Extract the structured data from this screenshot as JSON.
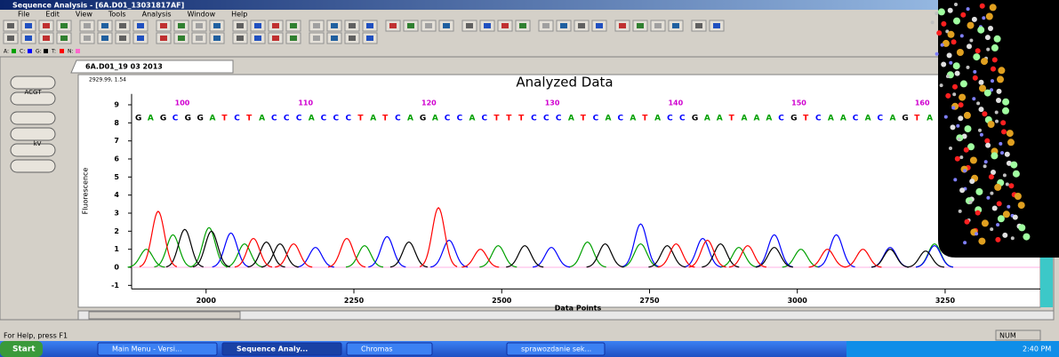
{
  "window": {
    "title": "Sequence Analysis - [6A.D01_13031817AF]",
    "menu": [
      "File",
      "Edit",
      "View",
      "Tools",
      "Analysis",
      "Window",
      "Help"
    ]
  },
  "legend": [
    {
      "label": "A:",
      "color": "#00a000"
    },
    {
      "label": "C:",
      "color": "#0000ff"
    },
    {
      "label": "G:",
      "color": "#000000"
    },
    {
      "label": "T:",
      "color": "#ff0000"
    },
    {
      "label": "N:",
      "color": "#ff66cc"
    }
  ],
  "tab": "6A.D01_19 03 2013",
  "side_buttons": [
    "ACGT",
    "kV"
  ],
  "chart_data": {
    "type": "line",
    "title": "Analyzed Data",
    "cursor": "2929.99, 1.54",
    "xlabel": "Data Points",
    "ylabel": "Fluorescence",
    "xlim": [
      1874,
      3411
    ],
    "ylim": [
      -1.2,
      9.6
    ],
    "xticks": [
      2000,
      2250,
      2500,
      2750,
      3000,
      3250
    ],
    "yticks": [
      -1,
      0,
      1,
      2,
      3,
      4,
      5,
      6,
      7,
      8,
      9
    ],
    "base_numbers": [
      100,
      110,
      120,
      130,
      140,
      150,
      160
    ],
    "sequence": "GAGCGGATCTACCCACCCTATCAGACCACTTTCCCATCACATACCGAATAAACGTCAACACAGTAC",
    "base_colors": {
      "A": "#00a000",
      "C": "#0000ff",
      "G": "#000000",
      "T": "#ff0000"
    },
    "series": [
      {
        "color": "#00a000",
        "x": [
          1899,
          1944,
          2005,
          2065,
          2268,
          2494,
          2645,
          2735,
          2901,
          3006,
          3232
        ],
        "values": [
          1.0,
          1.8,
          2.2,
          1.3,
          1.2,
          1.2,
          1.4,
          1.3,
          1.1,
          1.0,
          1.3
        ]
      },
      {
        "color": "#0000ff",
        "x": [
          2042,
          2185,
          2306,
          2411,
          2584,
          2735,
          2840,
          2961,
          3066,
          3157,
          3232
        ],
        "values": [
          1.9,
          1.1,
          1.7,
          1.5,
          1.1,
          2.4,
          1.6,
          1.8,
          1.8,
          1.1,
          1.2
        ]
      },
      {
        "color": "#000000",
        "x": [
          1964,
          2009,
          2102,
          2125,
          2343,
          2539,
          2675,
          2780,
          2870,
          2961,
          3157,
          3217
        ],
        "values": [
          2.1,
          2.0,
          1.4,
          1.3,
          1.4,
          1.2,
          1.3,
          1.2,
          1.3,
          1.1,
          1.0,
          0.9
        ]
      },
      {
        "color": "#ff0000",
        "x": [
          1919,
          2080,
          2148,
          2238,
          2393,
          2464,
          2795,
          2848,
          2916,
          3051,
          3111
        ],
        "values": [
          3.1,
          1.6,
          1.3,
          1.6,
          3.3,
          1.0,
          1.3,
          1.5,
          1.2,
          1.0,
          1.0
        ]
      }
    ]
  },
  "status": {
    "help": "For Help, press F1",
    "num": "NUM"
  },
  "taskbar": {
    "start": "Start",
    "tasks": [
      "Main Menu - Versi...",
      "Sequence Analy...",
      "Chromas",
      "sprawozdanie sek..."
    ],
    "clock": "2:40 PM"
  }
}
